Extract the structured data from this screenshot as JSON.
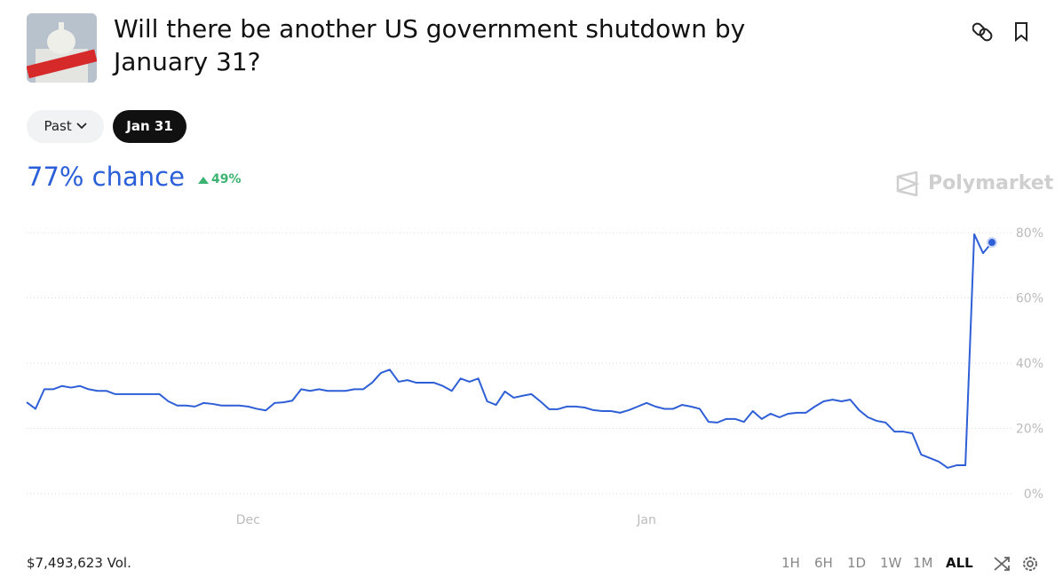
{
  "header": {
    "title": "Will there be another US government shutdown by January 31?"
  },
  "filters": [
    "Past",
    "Jan 31"
  ],
  "chance": "77% chance",
  "change": "49%",
  "brand": "Polymarket",
  "chart_data": {
    "type": "line",
    "categories": [
      null,
      null,
      null,
      null,
      null,
      null,
      null,
      null,
      null,
      null,
      null,
      null,
      null,
      null,
      null,
      null,
      null,
      null,
      null,
      null,
      null,
      null,
      null,
      null,
      null,
      "Dec",
      null,
      null,
      null,
      null,
      null,
      null,
      null,
      null,
      null,
      null,
      null,
      null,
      null,
      null,
      null,
      null,
      null,
      null,
      null,
      null,
      null,
      null,
      null,
      null,
      null,
      null,
      null,
      null,
      null,
      null,
      null,
      null,
      null,
      null,
      null,
      null,
      null,
      null,
      null,
      null,
      null,
      null,
      null,
      null,
      "Jan",
      null,
      null,
      null,
      null,
      null,
      null,
      null,
      null,
      null,
      null,
      null,
      null,
      null,
      null,
      null,
      null,
      null,
      null,
      null,
      null,
      null,
      null,
      null,
      null,
      null,
      null,
      null,
      null,
      null,
      null,
      null,
      null,
      null,
      null,
      null,
      null,
      null,
      null,
      null
    ],
    "values": [
      28,
      26,
      32,
      32,
      33,
      32.5,
      33,
      32,
      31.5,
      31.5,
      30.5,
      30.5,
      30.5,
      30.5,
      30.5,
      30.5,
      28.3,
      27,
      27,
      26.7,
      27.8,
      27.5,
      27,
      27,
      27,
      26.7,
      26,
      25.5,
      27.8,
      28,
      28.5,
      32,
      31.5,
      32,
      31.5,
      31.5,
      31.5,
      32,
      32,
      34,
      37,
      38,
      34.3,
      34.8,
      34,
      34,
      34,
      33,
      31.5,
      35.3,
      34.3,
      35.3,
      28.3,
      27.2,
      31.3,
      29.4,
      30,
      30.5,
      28.3,
      25.9,
      25.9,
      26.7,
      26.7,
      26.4,
      25.6,
      25.3,
      25.3,
      24.8,
      25.6,
      26.7,
      27.8,
      26.7,
      26,
      26,
      27.2,
      26.7,
      26,
      22,
      21.8,
      22.9,
      22.9,
      22,
      25.3,
      22.9,
      24.5,
      23.4,
      24.5,
      24.8,
      24.8,
      26.7,
      28.3,
      28.8,
      28.3,
      28.8,
      25.6,
      23.4,
      22.3,
      21.8,
      19,
      19,
      18.5,
      12,
      10.9,
      9.8,
      7.9,
      8.7,
      8.7,
      79.5,
      73.7,
      77
    ],
    "color": "#2f5fd6",
    "ylim": [
      0,
      80
    ],
    "yticks": [
      {
        "value": 0,
        "label": "0%"
      },
      {
        "value": 20,
        "label": "20%"
      },
      {
        "value": 40,
        "label": "40%"
      },
      {
        "value": 60,
        "label": "60%"
      },
      {
        "value": 80,
        "label": "80%"
      }
    ],
    "grid": true
  },
  "footer": {
    "volume": "$7,493,623 Vol.",
    "ranges": [
      "1H",
      "6H",
      "1D",
      "1W",
      "1M",
      "ALL"
    ]
  }
}
